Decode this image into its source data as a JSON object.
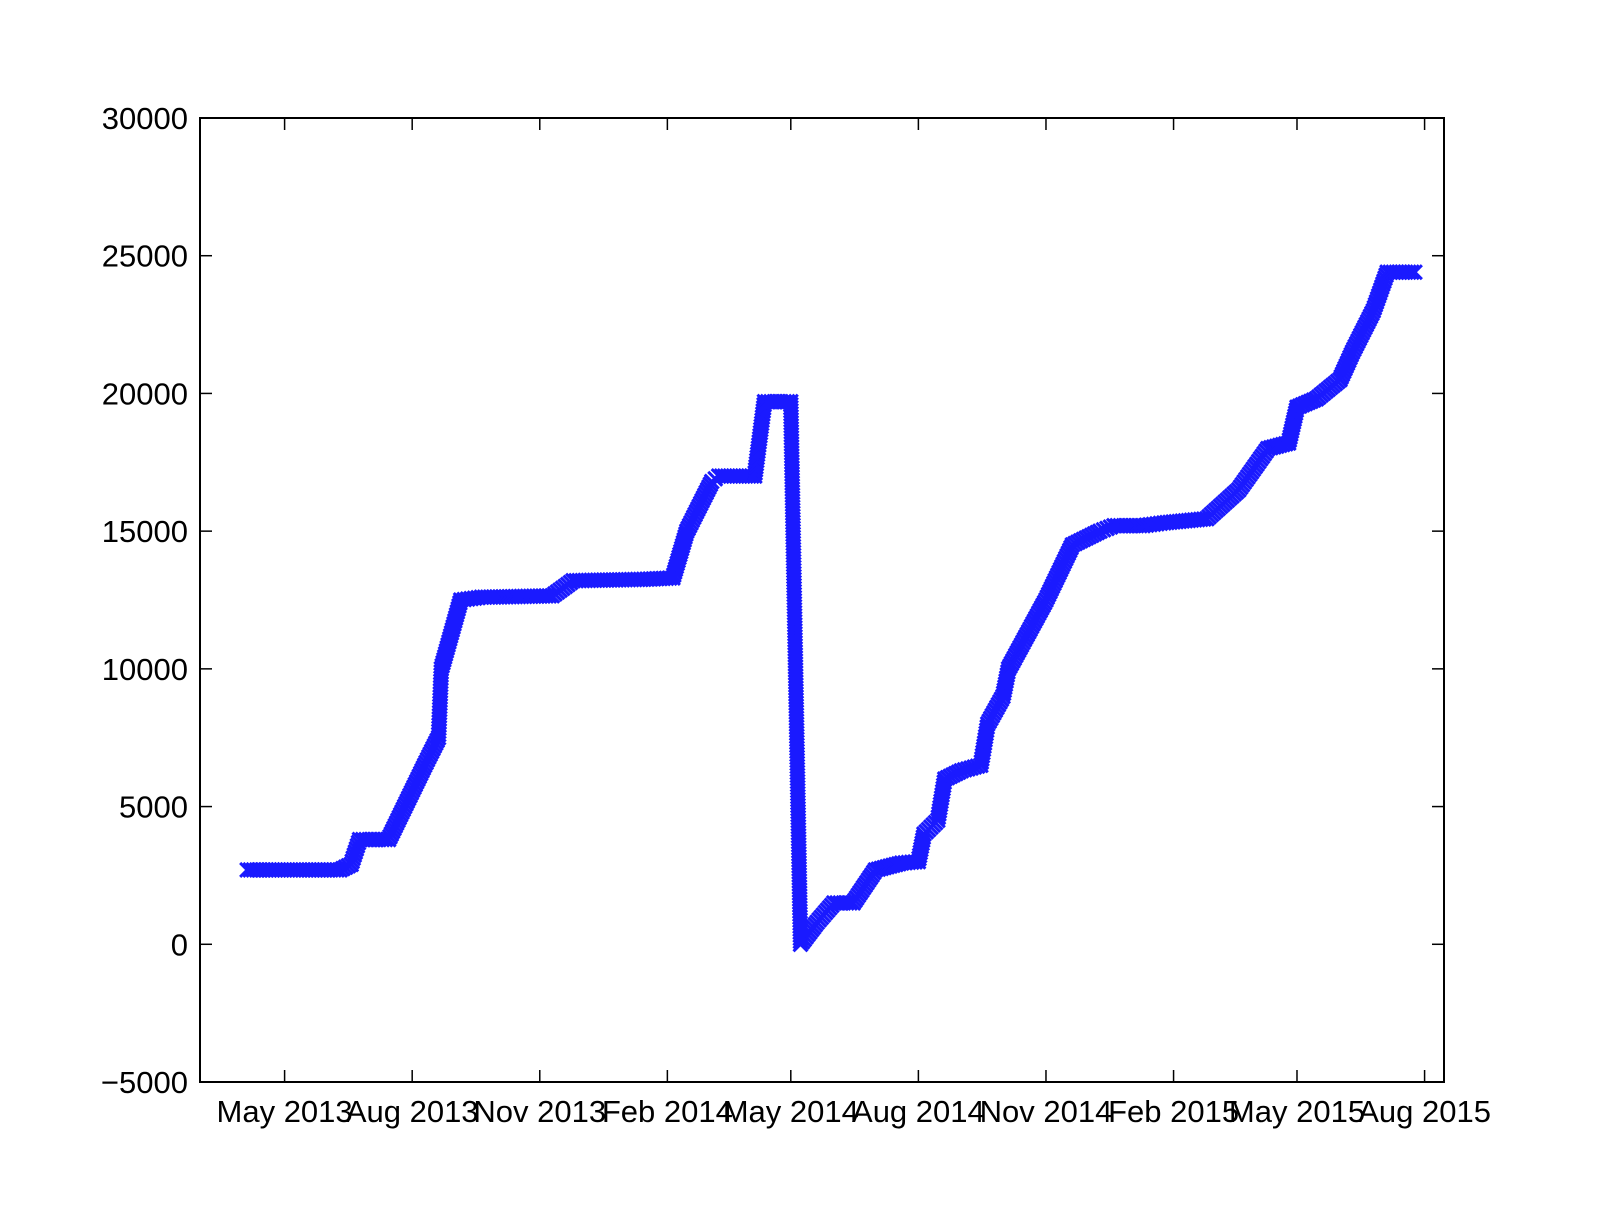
{
  "chart_data": {
    "type": "scatter",
    "title": "",
    "xlabel": "",
    "ylabel": "",
    "x_axis": {
      "kind": "date",
      "range": [
        "2013-03-01",
        "2015-08-15"
      ],
      "ticks": [
        {
          "date": "2013-05-01",
          "label": "May 2013"
        },
        {
          "date": "2013-08-01",
          "label": "Aug 2013"
        },
        {
          "date": "2013-11-01",
          "label": "Nov 2013"
        },
        {
          "date": "2014-02-01",
          "label": "Feb 2014"
        },
        {
          "date": "2014-05-01",
          "label": "May 2014"
        },
        {
          "date": "2014-08-01",
          "label": "Aug 2014"
        },
        {
          "date": "2014-11-01",
          "label": "Nov 2014"
        },
        {
          "date": "2015-02-01",
          "label": "Feb 2015"
        },
        {
          "date": "2015-05-01",
          "label": "May 2015"
        },
        {
          "date": "2015-08-01",
          "label": "Aug 2015"
        }
      ]
    },
    "y_axis": {
      "range": [
        -5000,
        30000
      ],
      "ticks": [
        -5000,
        0,
        5000,
        10000,
        15000,
        20000,
        25000,
        30000
      ],
      "tick_labels": [
        "−5000",
        "0",
        "5000",
        "10000",
        "15000",
        "20000",
        "25000",
        "30000"
      ]
    },
    "grid": false,
    "legend": "none",
    "marker": "x",
    "series_color": "#1a1aff",
    "series": [
      {
        "values": [
          [
            "2013-04-04",
            2700
          ],
          [
            "2013-04-20",
            2700
          ],
          [
            "2013-05-12",
            2700
          ],
          [
            "2013-06-10",
            2700
          ],
          [
            "2013-06-18",
            2900
          ],
          [
            "2013-06-24",
            3800
          ],
          [
            "2013-07-15",
            3800
          ],
          [
            "2013-08-10",
            6500
          ],
          [
            "2013-08-20",
            7500
          ],
          [
            "2013-08-22",
            10000
          ],
          [
            "2013-09-05",
            12500
          ],
          [
            "2013-09-20",
            12600
          ],
          [
            "2013-11-10",
            12650
          ],
          [
            "2013-11-25",
            13200
          ],
          [
            "2014-01-15",
            13250
          ],
          [
            "2014-02-05",
            13300
          ],
          [
            "2014-02-15",
            15000
          ],
          [
            "2014-03-05",
            16800
          ],
          [
            "2014-03-10",
            17000
          ],
          [
            "2014-04-05",
            17000
          ],
          [
            "2014-04-12",
            19700
          ],
          [
            "2014-05-01",
            19700
          ],
          [
            "2014-05-08",
            0
          ],
          [
            "2014-05-20",
            800
          ],
          [
            "2014-06-01",
            1500
          ],
          [
            "2014-06-15",
            1500
          ],
          [
            "2014-07-01",
            2700
          ],
          [
            "2014-07-20",
            2950
          ],
          [
            "2014-08-01",
            3000
          ],
          [
            "2014-08-05",
            4000
          ],
          [
            "2014-08-15",
            4500
          ],
          [
            "2014-08-20",
            6000
          ],
          [
            "2014-09-01",
            6300
          ],
          [
            "2014-09-15",
            6500
          ],
          [
            "2014-09-20",
            8000
          ],
          [
            "2014-10-01",
            9000
          ],
          [
            "2014-10-05",
            10000
          ],
          [
            "2014-11-01",
            12500
          ],
          [
            "2014-11-20",
            14500
          ],
          [
            "2014-12-10",
            15000
          ],
          [
            "2014-12-20",
            15200
          ],
          [
            "2015-01-10",
            15200
          ],
          [
            "2015-01-25",
            15300
          ],
          [
            "2015-02-25",
            15450
          ],
          [
            "2015-03-20",
            16500
          ],
          [
            "2015-04-10",
            18000
          ],
          [
            "2015-04-25",
            18200
          ],
          [
            "2015-05-01",
            19500
          ],
          [
            "2015-05-15",
            19800
          ],
          [
            "2015-06-01",
            20500
          ],
          [
            "2015-06-10",
            21500
          ],
          [
            "2015-06-25",
            23000
          ],
          [
            "2015-07-05",
            24400
          ],
          [
            "2015-07-25",
            24400
          ]
        ]
      }
    ]
  }
}
